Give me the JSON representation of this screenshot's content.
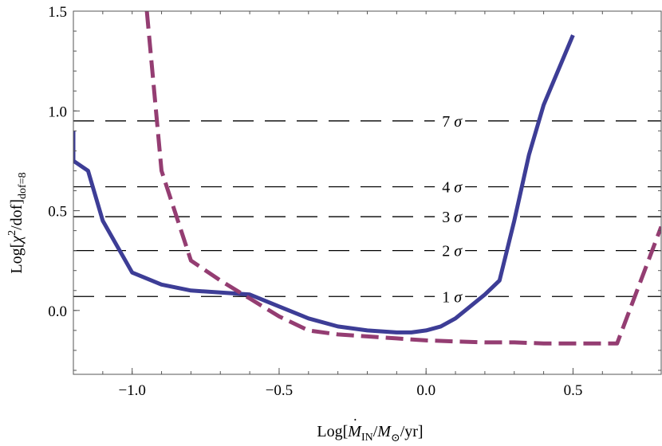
{
  "chart_data": {
    "type": "line",
    "title": "",
    "xlabel_parts": {
      "prefix": "Log[",
      "mdot": "M",
      "sub_in": "IN",
      "slash": "/",
      "msun": "M",
      "sun_symbol": "⊙",
      "suffix": "/yr]"
    },
    "ylabel_parts": {
      "prefix": "Log[",
      "chi": "χ",
      "sup": "2",
      "middle": "/dof]",
      "sub": "dof=8"
    },
    "xlim": [
      -1.2,
      0.8
    ],
    "ylim": [
      -0.32,
      1.5
    ],
    "xticks": [
      -1.0,
      -0.5,
      0.0,
      0.5
    ],
    "xtick_labels": [
      "−1.0",
      "−0.5",
      "0.0",
      "0.5"
    ],
    "yticks": [
      0.0,
      0.5,
      1.0,
      1.5
    ],
    "ytick_labels": [
      "0.0",
      "0.5",
      "1.0",
      "1.5"
    ],
    "series": [
      {
        "name": "solid",
        "color": "#3d3d96",
        "style": "solid",
        "x": [
          -1.2,
          -1.2,
          -1.15,
          -1.1,
          -1.0,
          -0.9,
          -0.8,
          -0.7,
          -0.6,
          -0.5,
          -0.4,
          -0.3,
          -0.2,
          -0.1,
          -0.05,
          0.0,
          0.05,
          0.1,
          0.15,
          0.2,
          0.25,
          0.3,
          0.35,
          0.4,
          0.5
        ],
        "y": [
          0.9,
          0.75,
          0.7,
          0.45,
          0.19,
          0.13,
          0.1,
          0.09,
          0.08,
          0.02,
          -0.04,
          -0.08,
          -0.1,
          -0.11,
          -0.11,
          -0.1,
          -0.08,
          -0.04,
          0.02,
          0.08,
          0.15,
          0.45,
          0.78,
          1.03,
          1.38
        ]
      },
      {
        "name": "dashed",
        "color": "#943d72",
        "style": "dashed",
        "x": [
          -0.95,
          -0.9,
          -0.8,
          -0.7,
          -0.6,
          -0.5,
          -0.4,
          -0.3,
          -0.2,
          -0.1,
          0.0,
          0.1,
          0.2,
          0.3,
          0.4,
          0.5,
          0.6,
          0.65,
          0.8
        ],
        "y": [
          1.5,
          0.7,
          0.25,
          0.15,
          0.06,
          -0.03,
          -0.1,
          -0.12,
          -0.13,
          -0.14,
          -0.15,
          -0.155,
          -0.16,
          -0.16,
          -0.165,
          -0.165,
          -0.165,
          -0.165,
          0.42
        ]
      }
    ],
    "reference_lines": [
      {
        "label": "1",
        "symbol": "σ",
        "y": 0.07
      },
      {
        "label": "2",
        "symbol": "σ",
        "y": 0.3
      },
      {
        "label": "3",
        "symbol": "σ",
        "y": 0.47
      },
      {
        "label": "4",
        "symbol": "σ",
        "y": 0.62
      },
      {
        "label": "7",
        "symbol": "σ",
        "y": 0.95
      }
    ],
    "reference_label_x": 0.16
  }
}
